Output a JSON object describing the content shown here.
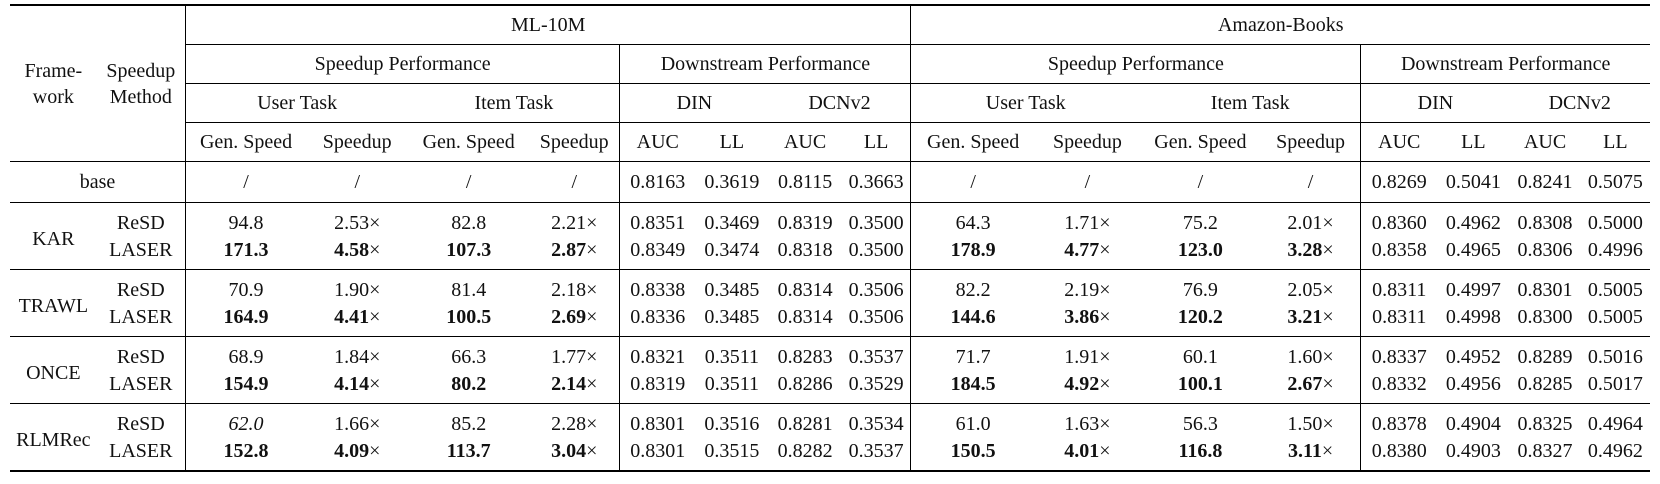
{
  "header": {
    "framework": [
      "Frame-",
      "work"
    ],
    "speedup_method": [
      "Speedup",
      "Method"
    ],
    "datasets": [
      "ML-10M",
      "Amazon-Books"
    ],
    "groups": [
      "Speedup Performance",
      "Downstream Performance"
    ],
    "tasks": [
      "User Task",
      "Item Task"
    ],
    "models": [
      "DIN",
      "DCNv2"
    ],
    "speed_cols": [
      "Gen. Speed",
      "Speedup"
    ],
    "metric_cols": [
      "AUC",
      "LL"
    ]
  },
  "rows": [
    {
      "framework": "base",
      "methods": [
        {
          "name": "",
          "ml10m": {
            "speed": [
              "/",
              "/",
              "/",
              "/"
            ],
            "down": [
              "0.8163",
              "0.3619",
              "0.8115",
              "0.3663"
            ]
          },
          "amazon": {
            "speed": [
              "/",
              "/",
              "/",
              "/"
            ],
            "down": [
              "0.8269",
              "0.5041",
              "0.8241",
              "0.5075"
            ]
          }
        }
      ]
    },
    {
      "framework": "KAR",
      "methods": [
        {
          "name": "ReSD",
          "ml10m": {
            "speed": [
              "94.8",
              "2.53×",
              "82.8",
              "2.21×"
            ],
            "down": [
              "0.8351",
              "0.3469",
              "0.8319",
              "0.3500"
            ]
          },
          "amazon": {
            "speed": [
              "64.3",
              "1.71×",
              "75.2",
              "2.01×"
            ],
            "down": [
              "0.8360",
              "0.4962",
              "0.8308",
              "0.5000"
            ]
          }
        },
        {
          "name": "LASER",
          "ml10m": {
            "speed": [
              "171.3",
              "4.58",
              "107.3",
              "2.87"
            ],
            "down": [
              "0.8349",
              "0.3474",
              "0.8318",
              "0.3500"
            ]
          },
          "amazon": {
            "speed": [
              "178.9",
              "4.77",
              "123.0",
              "3.28"
            ],
            "down": [
              "0.8358",
              "0.4965",
              "0.8306",
              "0.4996"
            ]
          }
        }
      ]
    },
    {
      "framework": "TRAWL",
      "methods": [
        {
          "name": "ReSD",
          "ml10m": {
            "speed": [
              "70.9",
              "1.90×",
              "81.4",
              "2.18×"
            ],
            "down": [
              "0.8338",
              "0.3485",
              "0.8314",
              "0.3506"
            ]
          },
          "amazon": {
            "speed": [
              "82.2",
              "2.19×",
              "76.9",
              "2.05×"
            ],
            "down": [
              "0.8311",
              "0.4997",
              "0.8301",
              "0.5005"
            ]
          }
        },
        {
          "name": "LASER",
          "ml10m": {
            "speed": [
              "164.9",
              "4.41",
              "100.5",
              "2.69"
            ],
            "down": [
              "0.8336",
              "0.3485",
              "0.8314",
              "0.3506"
            ]
          },
          "amazon": {
            "speed": [
              "144.6",
              "3.86",
              "120.2",
              "3.21"
            ],
            "down": [
              "0.8311",
              "0.4998",
              "0.8300",
              "0.5005"
            ]
          }
        }
      ]
    },
    {
      "framework": "ONCE",
      "methods": [
        {
          "name": "ReSD",
          "ml10m": {
            "speed": [
              "68.9",
              "1.84×",
              "66.3",
              "1.77×"
            ],
            "down": [
              "0.8321",
              "0.3511",
              "0.8283",
              "0.3537"
            ]
          },
          "amazon": {
            "speed": [
              "71.7",
              "1.91×",
              "60.1",
              "1.60×"
            ],
            "down": [
              "0.8337",
              "0.4952",
              "0.8289",
              "0.5016"
            ]
          }
        },
        {
          "name": "LASER",
          "ml10m": {
            "speed": [
              "154.9",
              "4.14",
              "80.2",
              "2.14"
            ],
            "down": [
              "0.8319",
              "0.3511",
              "0.8286",
              "0.3529"
            ]
          },
          "amazon": {
            "speed": [
              "184.5",
              "4.92",
              "100.1",
              "2.67"
            ],
            "down": [
              "0.8332",
              "0.4956",
              "0.8285",
              "0.5017"
            ]
          }
        }
      ]
    },
    {
      "framework": "RLMRec",
      "methods": [
        {
          "name": "ReSD",
          "ml10m": {
            "speed": [
              "62.0",
              "1.66×",
              "85.2",
              "2.28×"
            ],
            "down": [
              "0.8301",
              "0.3516",
              "0.8281",
              "0.3534"
            ]
          },
          "amazon": {
            "speed": [
              "61.0",
              "1.63×",
              "56.3",
              "1.50×"
            ],
            "down": [
              "0.8378",
              "0.4904",
              "0.8325",
              "0.4964"
            ]
          }
        },
        {
          "name": "LASER",
          "ml10m": {
            "speed": [
              "152.8",
              "4.09",
              "113.7",
              "3.04"
            ],
            "down": [
              "0.8301",
              "0.3515",
              "0.8282",
              "0.3537"
            ]
          },
          "amazon": {
            "speed": [
              "150.5",
              "4.01",
              "116.8",
              "3.11"
            ],
            "down": [
              "0.8380",
              "0.4903",
              "0.8327",
              "0.4962"
            ]
          }
        }
      ]
    }
  ],
  "times_symbol": "×"
}
